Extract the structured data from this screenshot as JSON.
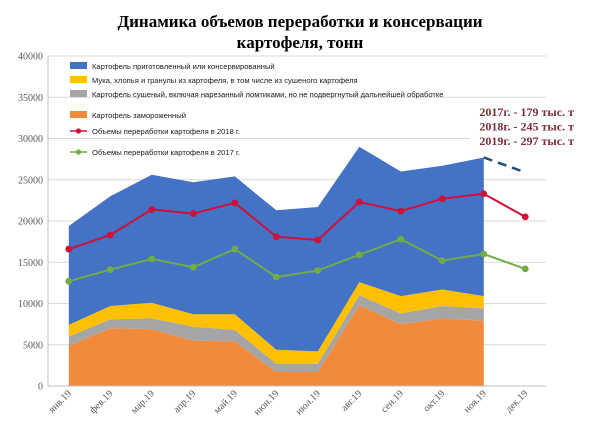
{
  "chart_data": {
    "type": "area",
    "title_line1": "Динамика объемов переработки и консервации",
    "title_line2": "картофеля, тонн",
    "categories": [
      "янв.19",
      "фев.19",
      "мар.19",
      "апр.19",
      "май.19",
      "июн.19",
      "июл.19",
      "авг.19",
      "сен.19",
      "окт.19",
      "ноя.19",
      "дек.19"
    ],
    "ylim": [
      0,
      40000
    ],
    "yticks": [
      0,
      5000,
      10000,
      15000,
      20000,
      25000,
      30000,
      35000,
      40000
    ],
    "ytick_labels": [
      "0",
      "5000",
      "10000",
      "15000",
      "20000",
      "25000",
      "30000",
      "35000",
      "40000"
    ],
    "grid": true,
    "legend_position": "top-left",
    "stacked_series": [
      {
        "name": "Картофель замороженный",
        "color": "#f28a3c",
        "values": [
          4900,
          7000,
          6900,
          5500,
          5400,
          1700,
          1700,
          9800,
          7500,
          8200,
          7900
        ]
      },
      {
        "name": "Картофель сушеный, включая нарезанный ломтиками, но не подвергнутый дальнейшей обработке",
        "color": "#a5a5a5",
        "values": [
          1100,
          1100,
          1300,
          1700,
          1400,
          1000,
          1000,
          1200,
          1300,
          1500,
          1500
        ]
      },
      {
        "name": "Мука, хлопья и гранулы из картофеля, в том числе из сушеного картофеля",
        "color": "#ffc000",
        "values": [
          1400,
          1600,
          1900,
          1500,
          1900,
          1700,
          1500,
          1600,
          2100,
          2000,
          1500
        ]
      },
      {
        "name": "Картофель приготовленный или консервированный",
        "color": "#4472c4",
        "values": [
          12000,
          13300,
          15500,
          16000,
          16700,
          16900,
          17500,
          16400,
          15100,
          15000,
          16800
        ]
      }
    ],
    "line_series": [
      {
        "name": "Объемы переработки картофеля в 2018 г.",
        "color": "#d0103a",
        "values": [
          16600,
          18300,
          21400,
          20900,
          22200,
          18100,
          17700,
          22300,
          21200,
          22700,
          23300,
          20500
        ]
      },
      {
        "name": "Объемы переработки картофеля в 2017 г.",
        "color": "#70ad47",
        "values": [
          12700,
          14100,
          15400,
          14400,
          16600,
          13200,
          14000,
          15900,
          17800,
          15200,
          16000,
          14200
        ]
      }
    ],
    "forecast": {
      "from": 27700,
      "to": 25900,
      "color": "#1f4e79"
    },
    "annotations": [
      "2017г. - 179 тыс. т",
      "2018г. - 245 тыс. т",
      "2019г. - 297 тыс. т"
    ]
  }
}
